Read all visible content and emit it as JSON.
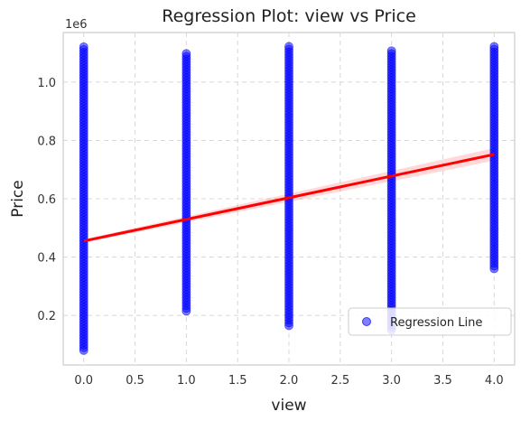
{
  "chart_data": {
    "type": "scatter",
    "title": "Regression Plot: view vs Price",
    "xlabel": "view",
    "ylabel": "Price",
    "y_scale_label": "1e6",
    "xlim": [
      -0.2,
      4.2
    ],
    "ylim": [
      30000,
      1170000
    ],
    "x_ticks": [
      0.0,
      0.5,
      1.0,
      1.5,
      2.0,
      2.5,
      3.0,
      3.5,
      4.0
    ],
    "x_tick_labels": [
      "0.0",
      "0.5",
      "1.0",
      "1.5",
      "2.0",
      "2.5",
      "3.0",
      "3.5",
      "4.0"
    ],
    "y_ticks": [
      200000,
      400000,
      600000,
      800000,
      1000000
    ],
    "y_tick_labels": [
      "0.2",
      "0.4",
      "0.6",
      "0.8",
      "1.0"
    ],
    "grid": true,
    "grid_style": "dashed",
    "legend_placement": "lower-right",
    "series": [
      {
        "name": "Regression Line",
        "type": "scatter",
        "color": "#0000ff",
        "columns": [
          {
            "x": 0,
            "y_min": 80000,
            "y_max": 1125000
          },
          {
            "x": 1,
            "y_min": 215000,
            "y_max": 1100000
          },
          {
            "x": 2,
            "y_min": 165000,
            "y_max": 1125000
          },
          {
            "x": 3,
            "y_min": 150000,
            "y_max": 1115000
          },
          {
            "x": 4,
            "y_min": 360000,
            "y_max": 1125000
          }
        ]
      }
    ],
    "regression": {
      "color": "#ff0000",
      "x": [
        0,
        4
      ],
      "y": [
        455000,
        752000
      ]
    }
  }
}
